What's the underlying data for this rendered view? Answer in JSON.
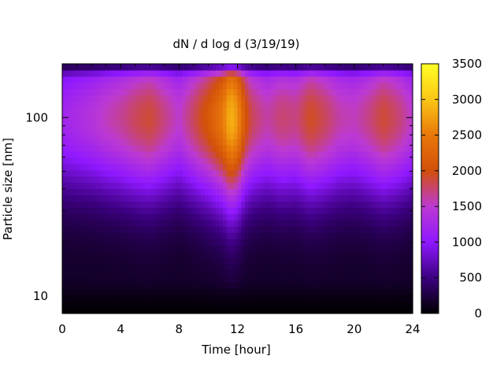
{
  "chart_data": {
    "type": "heatmap",
    "title": "dN / d log d (3/19/19)",
    "xlabel": "Time [hour]",
    "ylabel": "Particle size [nm]",
    "xlim": [
      0,
      24
    ],
    "ylim": [
      8,
      200
    ],
    "yscale": "log",
    "x_ticks": [
      "0",
      "4",
      "8",
      "12",
      "16",
      "20",
      "24"
    ],
    "y_ticks": [
      "10",
      "100"
    ],
    "colorbar": {
      "min": 0,
      "max": 3500,
      "ticks": [
        "0",
        "500",
        "1000",
        "1500",
        "2000",
        "2500",
        "3000",
        "3500"
      ],
      "colormap": [
        "#000000",
        "#3c0080",
        "#8f18ff",
        "#bc3ad2",
        "#d2500a",
        "#e8780a",
        "#fbc616",
        "#ffff25"
      ]
    },
    "peak_diameter_nm": 100,
    "time_profile": {
      "hours": [
        0,
        1,
        2,
        3,
        4,
        5,
        6,
        7,
        8,
        9,
        10,
        11,
        11.5,
        12,
        12.5,
        13,
        14,
        15,
        16,
        17,
        18,
        19,
        20,
        21,
        22,
        23,
        24
      ],
      "peak_concentration": [
        1200,
        1300,
        1400,
        1550,
        1650,
        1800,
        1900,
        1700,
        1500,
        1800,
        2100,
        2500,
        2900,
        2700,
        2100,
        1800,
        1600,
        1750,
        1700,
        1950,
        1800,
        1600,
        1550,
        1700,
        1900,
        1750,
        1500
      ]
    },
    "grid": false,
    "legend": "colorbar-right"
  }
}
